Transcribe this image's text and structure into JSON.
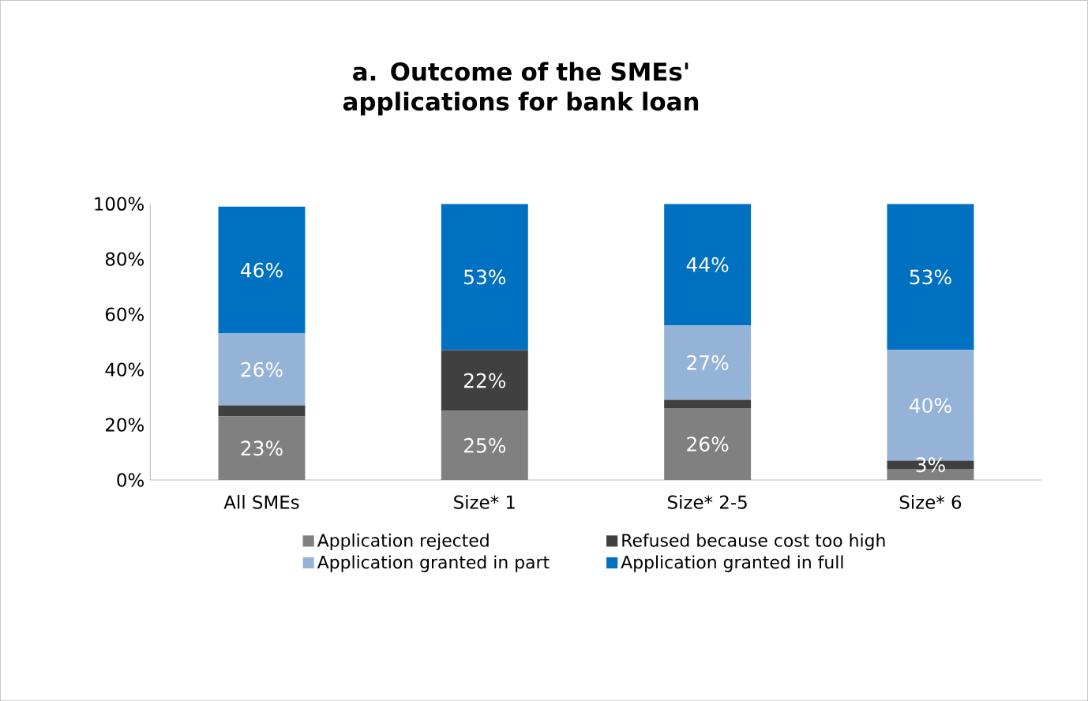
{
  "chart_data": {
    "type": "bar",
    "stacked": true,
    "title": "a. Outcome of the SMEs' applications for bank loan",
    "categories": [
      "All SMEs",
      "Size* 1",
      "Size* 2-5",
      "Size* 6"
    ],
    "series": [
      {
        "name": "Application rejected",
        "color": "#808080",
        "values": [
          23,
          25,
          26,
          4
        ],
        "value_labels": [
          "23%",
          "25%",
          "26%",
          null
        ]
      },
      {
        "name": "Refused because cost too high",
        "color": "#404040",
        "values": [
          4,
          22,
          3,
          3
        ],
        "value_labels": [
          null,
          "22%",
          null,
          "3%"
        ]
      },
      {
        "name": "Application granted in part",
        "color": "#95b3d7",
        "values": [
          26,
          0,
          27,
          40
        ],
        "value_labels": [
          "26%",
          null,
          "27%",
          "40%"
        ]
      },
      {
        "name": "Application granted in full",
        "color": "#0070c0",
        "values": [
          46,
          53,
          44,
          53
        ],
        "value_labels": [
          "46%",
          "53%",
          "44%",
          "53%"
        ]
      }
    ],
    "ylim": [
      0,
      100
    ],
    "yticks": [
      {
        "value": 0,
        "label": "0%"
      },
      {
        "value": 20,
        "label": "20%"
      },
      {
        "value": 40,
        "label": "40%"
      },
      {
        "value": 60,
        "label": "60%"
      },
      {
        "value": 80,
        "label": "80%"
      },
      {
        "value": 100,
        "label": "100%"
      }
    ],
    "legend": "bottom",
    "grid": false
  }
}
